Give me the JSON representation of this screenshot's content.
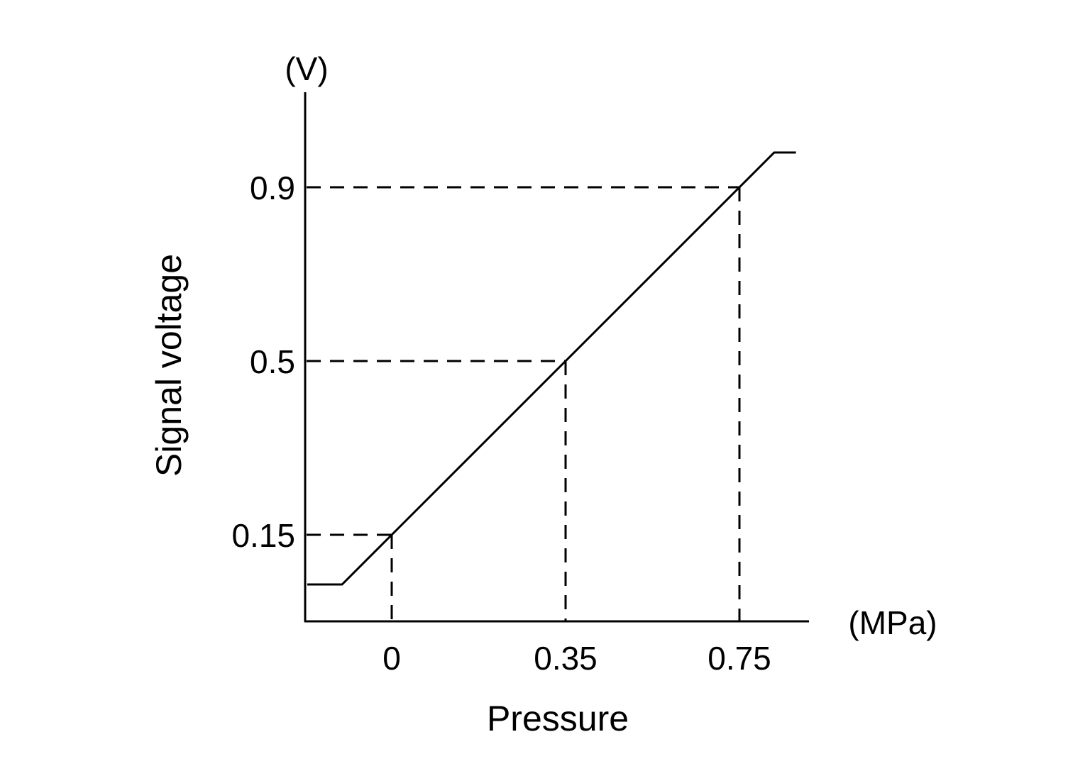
{
  "chart_data": {
    "type": "line",
    "title": "",
    "xlabel": "Pressure",
    "ylabel": "Signal voltage",
    "x_unit": "(MPa)",
    "y_unit": "(V)",
    "x_ticks": [
      0,
      0.35,
      0.75
    ],
    "x_tick_labels": [
      "0",
      "0.35",
      "0.75"
    ],
    "y_ticks": [
      0.15,
      0.5,
      0.9
    ],
    "y_tick_labels": [
      "0.15",
      "0.5",
      "0.9"
    ],
    "grid": false,
    "reference_lines": "dashed guides from each labeled point to both axes",
    "series": [
      {
        "x": [
          -0.17,
          -0.1,
          0,
          0.35,
          0.75,
          0.83,
          0.88
        ],
        "y": [
          0.05,
          0.05,
          0.15,
          0.5,
          0.9,
          0.98,
          0.98
        ],
        "color": "#000000"
      }
    ],
    "guide_points": [
      {
        "x": 0,
        "y": 0.15
      },
      {
        "x": 0.35,
        "y": 0.5
      },
      {
        "x": 0.75,
        "y": 0.9
      }
    ]
  }
}
